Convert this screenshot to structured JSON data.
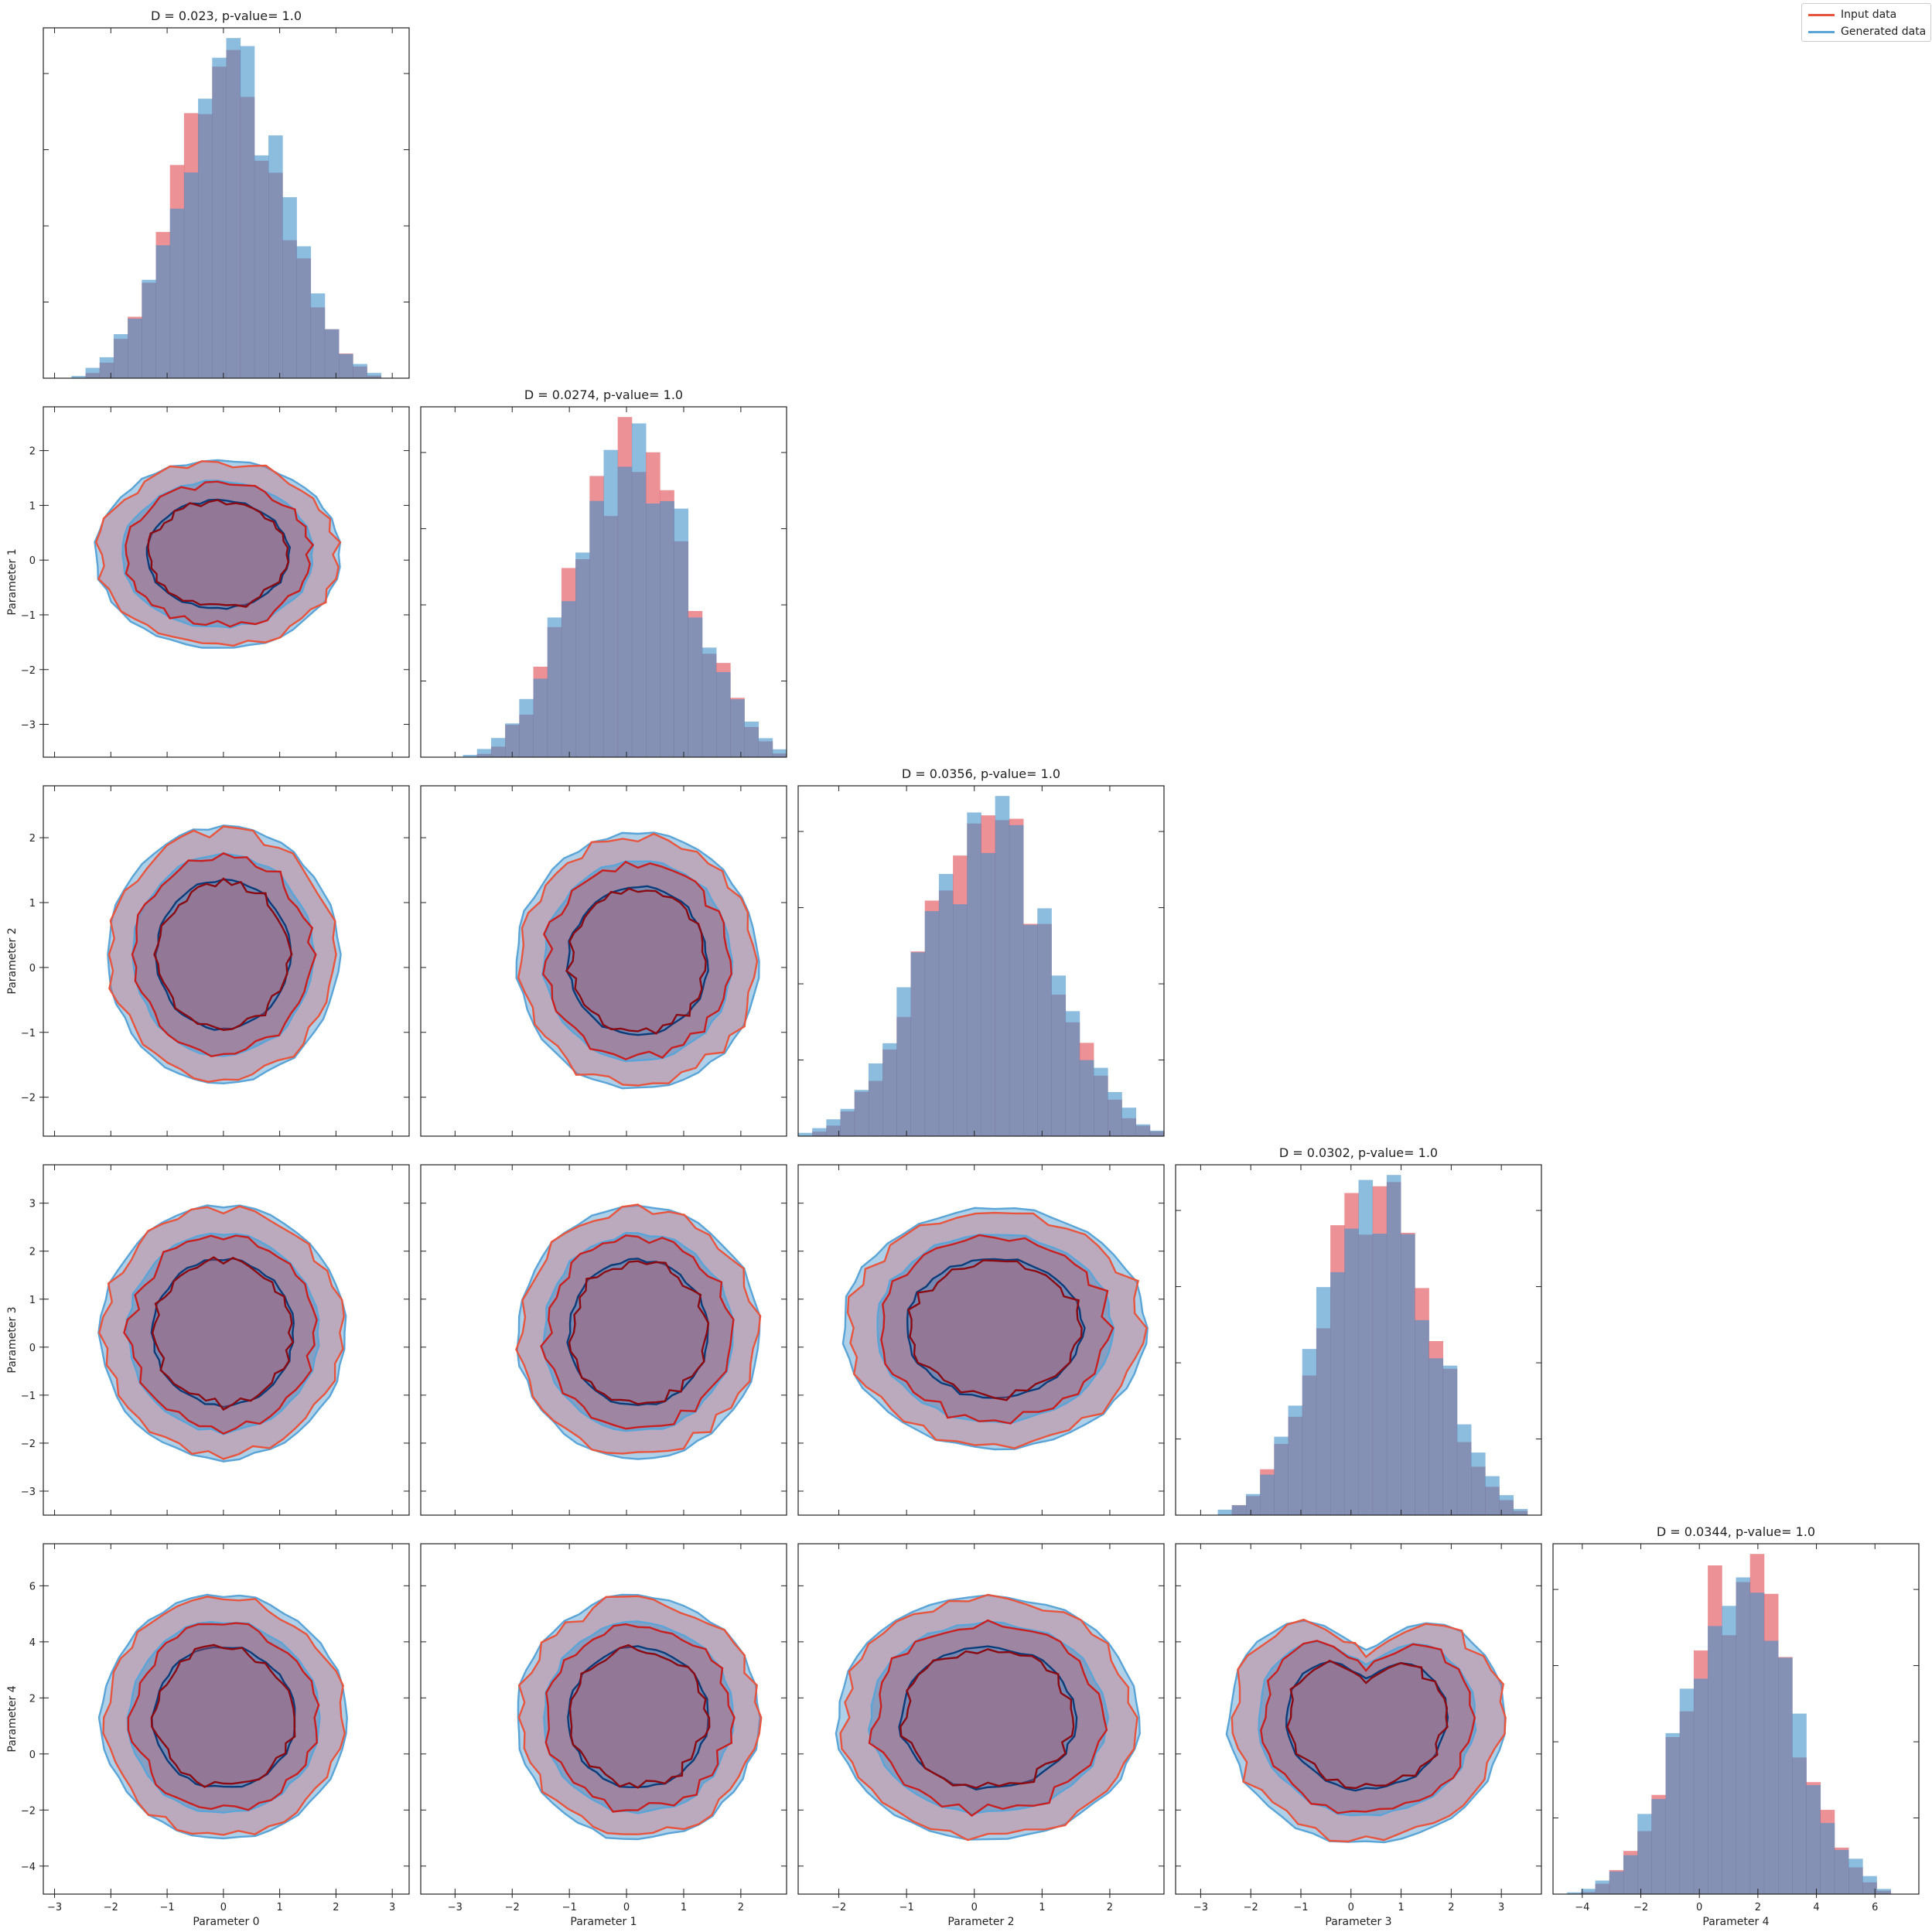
{
  "chart_data": {
    "type": "corner",
    "parameters": [
      "Parameter 0",
      "Parameter 1",
      "Parameter 2",
      "Parameter 3",
      "Parameter 4"
    ],
    "legend": {
      "placement": "top-right",
      "entries": [
        {
          "label": "Input data",
          "color": "#e8553f"
        },
        {
          "label": "Generated data",
          "color": "#5aa4d8"
        }
      ]
    },
    "colors": {
      "input_fill": "#e04850",
      "input_line": "#e8553f",
      "input_dark": "#8b0a12",
      "generated_fill": "#3f8fc8",
      "generated_line": "#5aa4d8",
      "generated_dark": "#0b3c7a",
      "overlap": "#5a5374"
    },
    "axes": [
      {
        "xlim": [
          -3.2,
          3.3
        ],
        "ticks": [
          -3,
          -2,
          -1,
          0,
          1,
          2,
          3
        ]
      },
      {
        "xlim": [
          -3.6,
          2.8
        ],
        "ticks": [
          -3,
          -2,
          -1,
          0,
          1,
          2
        ]
      },
      {
        "xlim": [
          -2.6,
          2.8
        ],
        "ticks": [
          -2,
          -1,
          0,
          1,
          2
        ]
      },
      {
        "xlim": [
          -3.5,
          3.8
        ],
        "ticks": [
          -3,
          -2,
          -1,
          0,
          1,
          2,
          3
        ]
      },
      {
        "xlim": [
          -5.0,
          7.5
        ],
        "ticks": [
          -4,
          -2,
          0,
          2,
          4,
          6
        ]
      }
    ],
    "diagonal": [
      {
        "title": "D = 0.023, p-value= 1.0",
        "mean": 0.1,
        "sd": 0.95,
        "seed": 11
      },
      {
        "title": "D = 0.0274, p-value= 1.0",
        "mean": 0.1,
        "sd": 1.0,
        "seed": 23
      },
      {
        "title": "D = 0.0356, p-value= 1.0",
        "mean": 0.2,
        "sd": 0.95,
        "seed": 37
      },
      {
        "title": "D = 0.0302, p-value= 1.0",
        "mean": 0.5,
        "sd": 1.1,
        "seed": 41
      },
      {
        "title": "D = 0.0344, p-value= 1.0",
        "mean": 1.3,
        "sd": 1.9,
        "seed": 53
      }
    ],
    "contours": [
      {
        "row": 1,
        "col": 0,
        "center": [
          -0.1,
          0.1
        ],
        "radii": [
          1.65,
          1.3
        ],
        "seed": 3
      },
      {
        "row": 2,
        "col": 0,
        "center": [
          0.0,
          0.2
        ],
        "radii": [
          1.55,
          1.5
        ],
        "seed": 5
      },
      {
        "row": 2,
        "col": 1,
        "center": [
          0.2,
          0.1
        ],
        "radii": [
          1.6,
          1.5
        ],
        "seed": 7
      },
      {
        "row": 3,
        "col": 0,
        "center": [
          0.0,
          0.3
        ],
        "radii": [
          1.65,
          2.0
        ],
        "seed": 9
      },
      {
        "row": 3,
        "col": 1,
        "center": [
          0.2,
          0.3
        ],
        "radii": [
          1.6,
          2.0
        ],
        "seed": 13
      },
      {
        "row": 3,
        "col": 2,
        "center": [
          0.3,
          0.4
        ],
        "radii": [
          1.7,
          1.9
        ],
        "seed": 17
      },
      {
        "row": 4,
        "col": 0,
        "center": [
          0.0,
          1.3
        ],
        "radii": [
          1.65,
          3.3
        ],
        "seed": 19
      },
      {
        "row": 4,
        "col": 1,
        "center": [
          0.2,
          1.3
        ],
        "radii": [
          1.6,
          3.3
        ],
        "seed": 29
      },
      {
        "row": 4,
        "col": 2,
        "center": [
          0.2,
          1.3
        ],
        "radii": [
          1.7,
          3.3
        ],
        "seed": 31
      },
      {
        "row": 4,
        "col": 3,
        "center": [
          0.3,
          1.3
        ],
        "radii": [
          2.1,
          3.4
        ],
        "seed": 43
      }
    ]
  }
}
